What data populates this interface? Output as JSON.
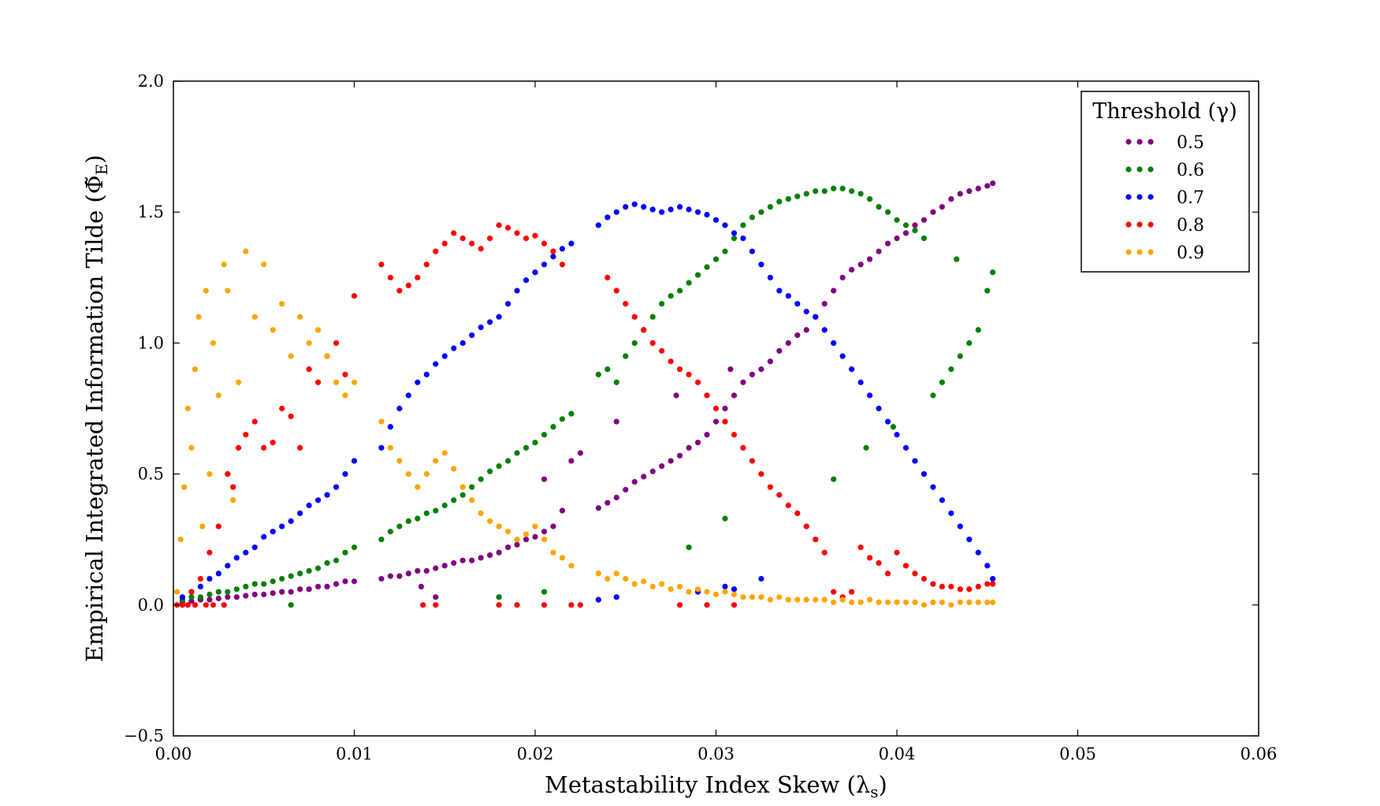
{
  "chart_data": {
    "type": "scatter",
    "title": "",
    "xlabel": "Metastability Index Skew (λ",
    "xlabel_sub": "s",
    "ylabel": "Empirical Integrated Information Tilde (Φ̃",
    "ylabel_sub": "E",
    "xlim": [
      0.0,
      0.06
    ],
    "ylim": [
      -0.5,
      2.0
    ],
    "xticks": [
      "0.00",
      "0.01",
      "0.02",
      "0.03",
      "0.04",
      "0.05",
      "0.06"
    ],
    "yticks": [
      "−0.5",
      "0.0",
      "0.5",
      "1.0",
      "1.5",
      "2.0"
    ],
    "grid": false,
    "legend": {
      "title": "Threshold (γ)",
      "placement": "top-right"
    },
    "series": [
      {
        "name": "0.5",
        "color": "#800080",
        "x": [
          0.0005,
          0.001,
          0.0015,
          0.002,
          0.0025,
          0.003,
          0.0035,
          0.004,
          0.0045,
          0.005,
          0.0055,
          0.006,
          0.0065,
          0.007,
          0.0075,
          0.008,
          0.0085,
          0.009,
          0.0095,
          0.01,
          0.0115,
          0.012,
          0.0125,
          0.013,
          0.0135,
          0.014,
          0.0145,
          0.015,
          0.0155,
          0.016,
          0.0165,
          0.017,
          0.0175,
          0.018,
          0.0185,
          0.019,
          0.0195,
          0.02,
          0.0205,
          0.021,
          0.0215,
          0.022,
          0.0235,
          0.024,
          0.0245,
          0.025,
          0.0255,
          0.026,
          0.0265,
          0.027,
          0.0275,
          0.028,
          0.0285,
          0.029,
          0.0295,
          0.03,
          0.0305,
          0.031,
          0.0315,
          0.032,
          0.0325,
          0.033,
          0.0335,
          0.034,
          0.0345,
          0.035,
          0.0355,
          0.036,
          0.0365,
          0.037,
          0.0375,
          0.038,
          0.0385,
          0.039,
          0.0395,
          0.04,
          0.0405,
          0.041,
          0.0415,
          0.042,
          0.0425,
          0.043,
          0.0435,
          0.044,
          0.0445,
          0.045,
          0.0453,
          0.0137,
          0.0145,
          0.0245,
          0.0205,
          0.0225,
          0.0278,
          0.0308
        ],
        "y": [
          0.01,
          0.015,
          0.02,
          0.02,
          0.025,
          0.03,
          0.03,
          0.035,
          0.04,
          0.04,
          0.045,
          0.05,
          0.05,
          0.06,
          0.06,
          0.07,
          0.07,
          0.08,
          0.09,
          0.09,
          0.1,
          0.11,
          0.11,
          0.12,
          0.13,
          0.13,
          0.14,
          0.15,
          0.16,
          0.17,
          0.17,
          0.18,
          0.19,
          0.2,
          0.22,
          0.23,
          0.25,
          0.26,
          0.28,
          0.3,
          0.36,
          0.55,
          0.37,
          0.39,
          0.41,
          0.44,
          0.47,
          0.49,
          0.51,
          0.53,
          0.55,
          0.57,
          0.6,
          0.62,
          0.65,
          0.7,
          0.75,
          0.8,
          0.85,
          0.88,
          0.9,
          0.93,
          0.97,
          1.0,
          1.03,
          1.05,
          1.1,
          1.15,
          1.2,
          1.25,
          1.28,
          1.3,
          1.32,
          1.35,
          1.38,
          1.4,
          1.42,
          1.45,
          1.47,
          1.5,
          1.52,
          1.55,
          1.57,
          1.58,
          1.59,
          1.6,
          1.61,
          0.07,
          0.03,
          0.7,
          0.48,
          0.58,
          0.8,
          0.9
        ]
      },
      {
        "name": "0.6",
        "color": "#008000",
        "x": [
          0.0005,
          0.001,
          0.0015,
          0.002,
          0.0025,
          0.003,
          0.0035,
          0.004,
          0.0045,
          0.005,
          0.0055,
          0.006,
          0.0065,
          0.007,
          0.0075,
          0.008,
          0.0085,
          0.009,
          0.0095,
          0.01,
          0.0115,
          0.012,
          0.0125,
          0.013,
          0.0135,
          0.014,
          0.0145,
          0.015,
          0.0155,
          0.016,
          0.0165,
          0.017,
          0.0175,
          0.018,
          0.0185,
          0.019,
          0.0195,
          0.02,
          0.0205,
          0.021,
          0.0215,
          0.022,
          0.0235,
          0.024,
          0.0245,
          0.025,
          0.0255,
          0.026,
          0.0265,
          0.027,
          0.0275,
          0.028,
          0.0285,
          0.029,
          0.0295,
          0.03,
          0.0305,
          0.031,
          0.0315,
          0.032,
          0.0325,
          0.033,
          0.0335,
          0.034,
          0.0345,
          0.035,
          0.0355,
          0.036,
          0.0365,
          0.037,
          0.0375,
          0.038,
          0.0385,
          0.039,
          0.0395,
          0.04,
          0.0405,
          0.041,
          0.0415,
          0.042,
          0.0425,
          0.043,
          0.0435,
          0.044,
          0.0445,
          0.045,
          0.0453,
          0.0065,
          0.018,
          0.0205,
          0.0285,
          0.0305,
          0.0365,
          0.0383,
          0.0398,
          0.0433
        ],
        "y": [
          0.02,
          0.03,
          0.03,
          0.04,
          0.05,
          0.05,
          0.06,
          0.07,
          0.08,
          0.08,
          0.09,
          0.1,
          0.11,
          0.12,
          0.13,
          0.14,
          0.16,
          0.17,
          0.2,
          0.22,
          0.25,
          0.28,
          0.3,
          0.32,
          0.33,
          0.35,
          0.36,
          0.38,
          0.4,
          0.42,
          0.45,
          0.48,
          0.51,
          0.53,
          0.55,
          0.58,
          0.6,
          0.62,
          0.65,
          0.68,
          0.71,
          0.73,
          0.88,
          0.9,
          0.85,
          0.95,
          1.0,
          1.05,
          1.1,
          1.15,
          1.18,
          1.2,
          1.23,
          1.26,
          1.29,
          1.32,
          1.35,
          1.4,
          1.45,
          1.48,
          1.5,
          1.52,
          1.54,
          1.55,
          1.56,
          1.57,
          1.58,
          1.58,
          1.59,
          1.59,
          1.58,
          1.57,
          1.55,
          1.52,
          1.5,
          1.47,
          1.45,
          1.43,
          1.4,
          0.8,
          0.85,
          0.9,
          0.95,
          1.0,
          1.05,
          1.2,
          1.27,
          0.0,
          0.03,
          0.05,
          0.22,
          0.33,
          0.48,
          0.6,
          0.68,
          1.32
        ]
      },
      {
        "name": "0.7",
        "color": "#0000ff",
        "x": [
          0.0005,
          0.001,
          0.0015,
          0.002,
          0.0025,
          0.003,
          0.0035,
          0.004,
          0.0045,
          0.005,
          0.0055,
          0.006,
          0.0065,
          0.007,
          0.0075,
          0.008,
          0.0085,
          0.009,
          0.0095,
          0.01,
          0.0115,
          0.012,
          0.0125,
          0.013,
          0.0135,
          0.014,
          0.0145,
          0.015,
          0.0155,
          0.016,
          0.0165,
          0.017,
          0.0175,
          0.018,
          0.0185,
          0.019,
          0.0195,
          0.02,
          0.0205,
          0.021,
          0.0215,
          0.022,
          0.0235,
          0.024,
          0.0245,
          0.025,
          0.0255,
          0.026,
          0.0265,
          0.027,
          0.0275,
          0.028,
          0.0285,
          0.029,
          0.0295,
          0.03,
          0.0305,
          0.031,
          0.0315,
          0.032,
          0.0325,
          0.033,
          0.0335,
          0.034,
          0.0345,
          0.035,
          0.0355,
          0.036,
          0.0365,
          0.037,
          0.0375,
          0.038,
          0.0385,
          0.039,
          0.0395,
          0.04,
          0.0405,
          0.041,
          0.0415,
          0.042,
          0.0425,
          0.043,
          0.0435,
          0.044,
          0.0445,
          0.045,
          0.0453,
          0.0235,
          0.0245,
          0.029,
          0.031,
          0.0325,
          0.0305
        ],
        "y": [
          0.03,
          0.05,
          0.07,
          0.1,
          0.12,
          0.15,
          0.18,
          0.2,
          0.22,
          0.26,
          0.28,
          0.3,
          0.32,
          0.35,
          0.38,
          0.4,
          0.42,
          0.45,
          0.5,
          0.55,
          0.6,
          0.68,
          0.75,
          0.8,
          0.85,
          0.88,
          0.92,
          0.95,
          0.98,
          1.0,
          1.03,
          1.06,
          1.08,
          1.1,
          1.15,
          1.2,
          1.24,
          1.27,
          1.3,
          1.33,
          1.36,
          1.38,
          1.45,
          1.48,
          1.5,
          1.52,
          1.53,
          1.52,
          1.51,
          1.5,
          1.51,
          1.52,
          1.51,
          1.5,
          1.49,
          1.47,
          1.45,
          1.42,
          1.4,
          1.35,
          1.3,
          1.25,
          1.2,
          1.18,
          1.15,
          1.12,
          1.1,
          1.05,
          1.0,
          0.95,
          0.9,
          0.85,
          0.8,
          0.75,
          0.7,
          0.65,
          0.6,
          0.55,
          0.5,
          0.45,
          0.4,
          0.35,
          0.3,
          0.25,
          0.2,
          0.15,
          0.1,
          0.02,
          0.03,
          0.05,
          0.06,
          0.1,
          0.07
        ]
      },
      {
        "name": "0.8",
        "color": "#ff0000",
        "x": [
          0.0002,
          0.0005,
          0.0008,
          0.001,
          0.0012,
          0.0015,
          0.0018,
          0.002,
          0.0022,
          0.0025,
          0.0028,
          0.003,
          0.0033,
          0.0036,
          0.004,
          0.0045,
          0.005,
          0.0055,
          0.006,
          0.0065,
          0.007,
          0.0075,
          0.008,
          0.0085,
          0.009,
          0.0095,
          0.01,
          0.0115,
          0.012,
          0.0125,
          0.013,
          0.0135,
          0.014,
          0.0145,
          0.015,
          0.0155,
          0.016,
          0.0165,
          0.017,
          0.0175,
          0.018,
          0.0185,
          0.019,
          0.0195,
          0.02,
          0.0205,
          0.021,
          0.0215,
          0.024,
          0.0245,
          0.025,
          0.0255,
          0.026,
          0.0265,
          0.027,
          0.0275,
          0.028,
          0.0285,
          0.029,
          0.0295,
          0.03,
          0.0305,
          0.031,
          0.0315,
          0.032,
          0.0325,
          0.033,
          0.0335,
          0.034,
          0.0345,
          0.035,
          0.0355,
          0.036,
          0.0365,
          0.037,
          0.0375,
          0.038,
          0.0385,
          0.039,
          0.0395,
          0.04,
          0.0405,
          0.041,
          0.0415,
          0.042,
          0.0425,
          0.043,
          0.0435,
          0.044,
          0.0445,
          0.045,
          0.0453,
          0.0138,
          0.0145,
          0.018,
          0.019,
          0.0205,
          0.022,
          0.0225,
          0.028,
          0.0295,
          0.031
        ],
        "y": [
          0.0,
          0.0,
          0.0,
          0.05,
          0.0,
          0.1,
          0.0,
          0.2,
          0.0,
          0.3,
          0.0,
          0.5,
          0.45,
          0.6,
          0.65,
          0.7,
          0.6,
          0.62,
          0.75,
          0.72,
          0.6,
          0.9,
          0.85,
          0.95,
          1.0,
          0.88,
          1.18,
          1.3,
          1.25,
          1.2,
          1.22,
          1.25,
          1.3,
          1.35,
          1.38,
          1.42,
          1.4,
          1.38,
          1.36,
          1.4,
          1.45,
          1.44,
          1.42,
          1.4,
          1.41,
          1.38,
          1.35,
          1.3,
          1.25,
          1.2,
          1.15,
          1.1,
          1.05,
          1.0,
          0.97,
          0.93,
          0.9,
          0.88,
          0.85,
          0.8,
          0.75,
          0.7,
          0.65,
          0.6,
          0.55,
          0.5,
          0.45,
          0.42,
          0.38,
          0.35,
          0.3,
          0.25,
          0.2,
          0.05,
          0.03,
          0.05,
          0.22,
          0.18,
          0.16,
          0.12,
          0.2,
          0.15,
          0.12,
          0.1,
          0.08,
          0.07,
          0.07,
          0.06,
          0.06,
          0.07,
          0.08,
          0.08,
          0.0,
          0.0,
          0.0,
          0.0,
          0.0,
          0.0,
          0.0,
          0.0,
          0.0,
          0.0
        ]
      },
      {
        "name": "0.9",
        "color": "#ffa500",
        "x": [
          0.0002,
          0.0004,
          0.0006,
          0.0008,
          0.001,
          0.0012,
          0.0014,
          0.0016,
          0.0018,
          0.002,
          0.0022,
          0.0025,
          0.0028,
          0.003,
          0.0033,
          0.0036,
          0.004,
          0.0045,
          0.005,
          0.0055,
          0.006,
          0.0065,
          0.007,
          0.0075,
          0.008,
          0.0085,
          0.009,
          0.0095,
          0.01,
          0.0115,
          0.012,
          0.0125,
          0.013,
          0.0135,
          0.014,
          0.0145,
          0.015,
          0.0155,
          0.016,
          0.0165,
          0.017,
          0.0175,
          0.018,
          0.0185,
          0.019,
          0.0195,
          0.02,
          0.0205,
          0.021,
          0.0215,
          0.022,
          0.0235,
          0.024,
          0.0245,
          0.025,
          0.0255,
          0.026,
          0.0265,
          0.027,
          0.0275,
          0.028,
          0.0285,
          0.029,
          0.0295,
          0.03,
          0.0305,
          0.031,
          0.0315,
          0.032,
          0.0325,
          0.033,
          0.0335,
          0.034,
          0.0345,
          0.035,
          0.0355,
          0.036,
          0.0365,
          0.037,
          0.0375,
          0.038,
          0.0385,
          0.039,
          0.0395,
          0.04,
          0.0405,
          0.041,
          0.0415,
          0.042,
          0.0425,
          0.043,
          0.0435,
          0.044,
          0.0445,
          0.045,
          0.0453
        ],
        "y": [
          0.05,
          0.25,
          0.45,
          0.75,
          0.6,
          0.9,
          1.1,
          0.3,
          1.2,
          0.5,
          1.0,
          0.8,
          1.3,
          1.2,
          0.4,
          0.85,
          1.35,
          1.1,
          1.3,
          1.05,
          1.15,
          0.95,
          1.1,
          1.0,
          1.05,
          0.95,
          0.85,
          0.8,
          0.85,
          0.7,
          0.6,
          0.55,
          0.5,
          0.45,
          0.5,
          0.55,
          0.58,
          0.52,
          0.45,
          0.4,
          0.35,
          0.32,
          0.3,
          0.28,
          0.25,
          0.27,
          0.3,
          0.25,
          0.2,
          0.18,
          0.15,
          0.12,
          0.1,
          0.12,
          0.1,
          0.08,
          0.09,
          0.07,
          0.08,
          0.06,
          0.07,
          0.05,
          0.06,
          0.05,
          0.04,
          0.05,
          0.04,
          0.03,
          0.03,
          0.03,
          0.02,
          0.03,
          0.02,
          0.02,
          0.02,
          0.02,
          0.02,
          0.01,
          0.02,
          0.01,
          0.01,
          0.02,
          0.01,
          0.01,
          0.01,
          0.01,
          0.01,
          0.0,
          0.01,
          0.01,
          0.0,
          0.01,
          0.01,
          0.01,
          0.01,
          0.01
        ]
      }
    ]
  }
}
